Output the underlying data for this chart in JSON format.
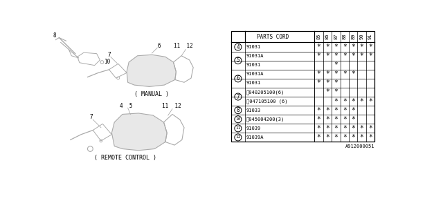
{
  "bg_color": "#ffffff",
  "groups": [
    {
      "ref": "4",
      "rows": [
        {
          "part": "91031",
          "marks": [
            1,
            1,
            1,
            1,
            1,
            1,
            1
          ]
        }
      ]
    },
    {
      "ref": "5",
      "rows": [
        {
          "part": "91031A",
          "marks": [
            1,
            1,
            1,
            1,
            1,
            1,
            1
          ]
        },
        {
          "part": "91031",
          "marks": [
            0,
            0,
            1,
            0,
            0,
            0,
            0
          ]
        }
      ]
    },
    {
      "ref": "6",
      "rows": [
        {
          "part": "91031A",
          "marks": [
            1,
            1,
            1,
            1,
            1,
            0,
            0
          ]
        },
        {
          "part": "91031",
          "marks": [
            1,
            1,
            1,
            0,
            0,
            0,
            0
          ]
        }
      ]
    },
    {
      "ref": "7",
      "rows": [
        {
          "part": "Ⓢ040205100(6)",
          "marks": [
            0,
            1,
            1,
            0,
            0,
            0,
            0
          ]
        },
        {
          "part": "Ⓢ047105100 (6)",
          "marks": [
            0,
            0,
            1,
            1,
            1,
            1,
            1
          ]
        }
      ]
    },
    {
      "ref": "8",
      "rows": [
        {
          "part": "91033",
          "marks": [
            1,
            1,
            1,
            1,
            1,
            0,
            0
          ]
        }
      ]
    },
    {
      "ref": "10",
      "rows": [
        {
          "part": "Ⓢ045004200(3)",
          "marks": [
            1,
            1,
            1,
            1,
            1,
            0,
            0
          ]
        }
      ]
    },
    {
      "ref": "11",
      "rows": [
        {
          "part": "91039",
          "marks": [
            1,
            1,
            1,
            1,
            1,
            1,
            1
          ]
        }
      ]
    },
    {
      "ref": "12",
      "rows": [
        {
          "part": "91039A",
          "marks": [
            1,
            1,
            1,
            1,
            1,
            1,
            1
          ]
        }
      ]
    }
  ],
  "year_cols": [
    "85",
    "86",
    "87",
    "88",
    "89",
    "90",
    "91"
  ],
  "footer_code": "A912000051",
  "diagram_label_manual": "( MANUAL )",
  "diagram_label_remote": "( REMOTE CONTROL )"
}
